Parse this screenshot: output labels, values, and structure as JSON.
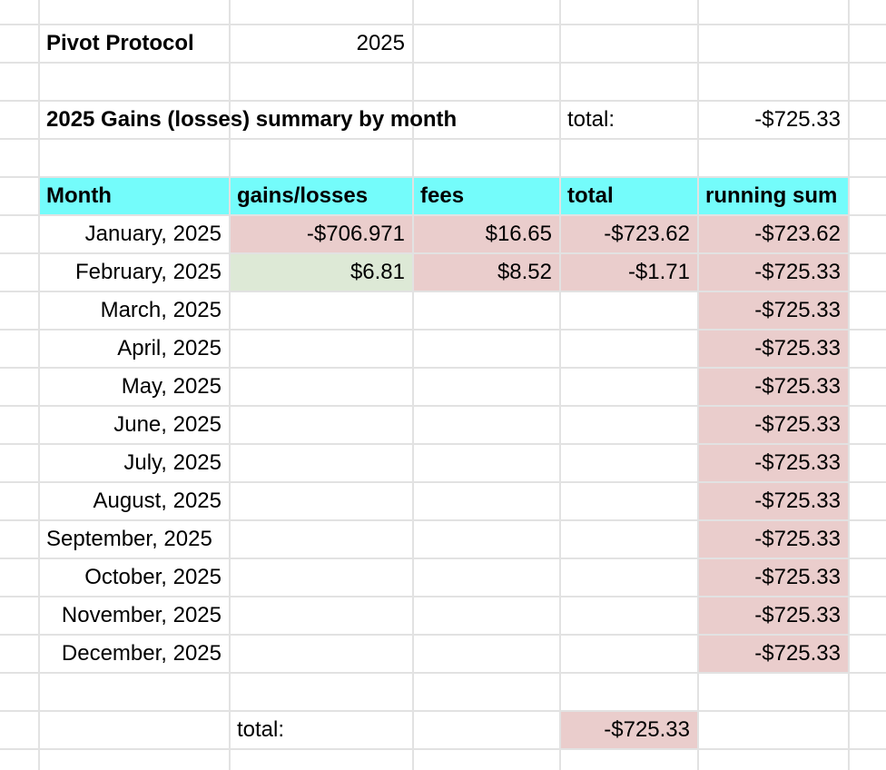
{
  "colors": {
    "header_fill": "#74fcfb",
    "loss_fill": "#eacdcc",
    "gain_fill": "#dde9d6",
    "gridline": "#e2e2e2"
  },
  "sheet": {
    "title": "Pivot Protocol",
    "year": "2025",
    "summary_title": "2025 Gains (losses) summary by month",
    "summary_total_label": "total:",
    "summary_total_value": "-$725.33",
    "headers": {
      "month": "Month",
      "gains_losses": "gains/losses",
      "fees": "fees",
      "total": "total",
      "running_sum": "running sum"
    },
    "rows": [
      {
        "month": "January, 2025",
        "gains": "-$706.971",
        "fees": "$16.65",
        "total": "-$723.62",
        "running": "-$723.62"
      },
      {
        "month": "February, 2025",
        "gains": "$6.81",
        "fees": "$8.52",
        "total": "-$1.71",
        "running": "-$725.33"
      },
      {
        "month": "March, 2025",
        "gains": "",
        "fees": "",
        "total": "",
        "running": "-$725.33"
      },
      {
        "month": "April, 2025",
        "gains": "",
        "fees": "",
        "total": "",
        "running": "-$725.33"
      },
      {
        "month": "May, 2025",
        "gains": "",
        "fees": "",
        "total": "",
        "running": "-$725.33"
      },
      {
        "month": "June, 2025",
        "gains": "",
        "fees": "",
        "total": "",
        "running": "-$725.33"
      },
      {
        "month": "July, 2025",
        "gains": "",
        "fees": "",
        "total": "",
        "running": "-$725.33"
      },
      {
        "month": "August, 2025",
        "gains": "",
        "fees": "",
        "total": "",
        "running": "-$725.33"
      },
      {
        "month": "September, 2025",
        "gains": "",
        "fees": "",
        "total": "",
        "running": "-$725.33"
      },
      {
        "month": "October, 2025",
        "gains": "",
        "fees": "",
        "total": "",
        "running": "-$725.33"
      },
      {
        "month": "November, 2025",
        "gains": "",
        "fees": "",
        "total": "",
        "running": "-$725.33"
      },
      {
        "month": "December, 2025",
        "gains": "",
        "fees": "",
        "total": "",
        "running": "-$725.33"
      }
    ],
    "footer": {
      "total_label": "total:",
      "total_value": "-$725.33"
    }
  }
}
